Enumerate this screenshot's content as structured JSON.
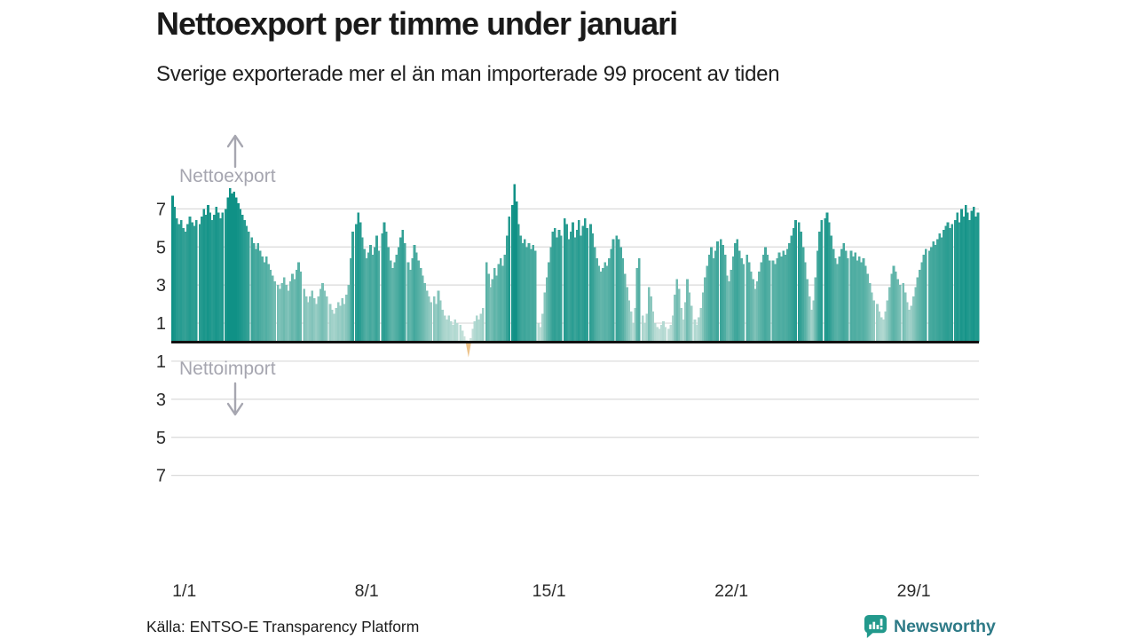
{
  "page": {
    "title": "Nettoexport per timme under januari",
    "subtitle": "Sverige exporterade mer el än man importerade 99 procent av tiden"
  },
  "annotations": {
    "export_label": "Nettoexport",
    "import_label": "Nettoimport"
  },
  "footer": {
    "source": "Källa: ENTSO-E Transparency Platform",
    "brand_name": "Newsworthy"
  },
  "colors": {
    "scale_low": "#d5e8e2",
    "scale_mid": "#62b5aa",
    "scale_high": "#0f9186",
    "negative": "#edc289",
    "gridline": "#dadada",
    "zero_line": "#111111",
    "tick_text": "#2b2b2b",
    "annotation": "#a6a6b0",
    "brand_teal": "#22998c",
    "brand_text": "#2e7a87"
  },
  "chart_data": {
    "type": "area",
    "title": "Nettoexport per timme under januari",
    "x_tick_labels": [
      "1/1",
      "8/1",
      "15/1",
      "22/1",
      "29/1"
    ],
    "x_tick_days": [
      1,
      8,
      15,
      22,
      29
    ],
    "y_tick_values": [
      7,
      5,
      3,
      1,
      -1,
      -3,
      -5,
      -7
    ],
    "ylim": [
      -8.6,
      8.6
    ],
    "grid": true,
    "legend": "none",
    "hours_per_point": 2,
    "days": [
      [
        7.7,
        7.1,
        6.5,
        6.2,
        6.4,
        6.0,
        5.8,
        6.2,
        6.6,
        6.3,
        6.1,
        6.4
      ],
      [
        6.2,
        6.6,
        7.0,
        6.7,
        7.2,
        6.8,
        6.4,
        6.7,
        7.1,
        6.8,
        6.5,
        6.8
      ],
      [
        7.0,
        7.6,
        8.1,
        7.8,
        7.9,
        7.6,
        7.3,
        7.0,
        6.7,
        6.4,
        6.1,
        5.8
      ],
      [
        5.5,
        5.2,
        4.9,
        5.2,
        4.8,
        4.5,
        4.2,
        4.5,
        4.1,
        3.8,
        3.5,
        3.2
      ],
      [
        3.0,
        2.8,
        3.1,
        3.4,
        3.0,
        2.7,
        3.2,
        3.6,
        3.3,
        3.8,
        4.2,
        3.7
      ],
      [
        2.8,
        2.4,
        2.1,
        2.4,
        2.7,
        2.3,
        2.0,
        2.4,
        2.8,
        3.1,
        2.7,
        2.4
      ],
      [
        2.0,
        1.7,
        1.5,
        1.8,
        2.1,
        1.9,
        2.3,
        2.0,
        2.5,
        3.0,
        4.4,
        5.8
      ],
      [
        6.2,
        6.8,
        6.3,
        5.5,
        4.9,
        4.4,
        4.7,
        5.1,
        4.6,
        5.0,
        5.6,
        4.8
      ],
      [
        5.7,
        6.3,
        5.8,
        5.0,
        4.3,
        3.9,
        4.2,
        4.6,
        5.0,
        5.5,
        5.9,
        5.2
      ],
      [
        4.2,
        3.8,
        4.4,
        5.1,
        4.7,
        4.3,
        3.9,
        3.5,
        3.1,
        2.7,
        2.4,
        2.1
      ],
      [
        2.4,
        2.0,
        2.7,
        2.2,
        1.7,
        1.4,
        1.2,
        1.4,
        1.1,
        0.9,
        1.2,
        1.0
      ],
      [
        0.9,
        0.6,
        0.3,
        0.1,
        -0.8,
        0.2,
        0.7,
        1.1,
        1.4,
        1.2,
        1.5,
        1.8
      ],
      [
        4.2,
        3.6,
        2.9,
        3.3,
        3.9,
        3.5,
        4.1,
        4.4,
        4.0,
        4.6,
        5.6,
        6.6
      ],
      [
        7.2,
        8.3,
        7.4,
        6.2,
        5.6,
        5.2,
        5.4,
        5.0,
        5.2,
        4.9,
        5.1,
        4.8
      ],
      [
        1.0,
        0.8,
        1.5,
        2.6,
        3.4,
        4.2,
        5.0,
        5.8,
        6.0,
        5.5,
        5.9,
        5.6
      ],
      [
        6.5,
        6.2,
        5.4,
        5.8,
        6.3,
        5.5,
        5.9,
        6.4,
        5.6,
        6.1,
        6.5,
        6.0
      ],
      [
        6.2,
        5.7,
        5.0,
        4.4,
        4.0,
        3.7,
        3.9,
        4.2,
        4.0,
        4.4,
        4.9,
        5.4
      ],
      [
        5.6,
        5.4,
        5.0,
        4.4,
        3.6,
        2.9,
        2.2,
        1.6,
        1.0,
        1.8,
        3.9,
        4.4
      ],
      [
        1.4,
        1.0,
        1.5,
        2.9,
        2.4,
        1.6,
        1.0,
        0.8,
        0.7,
        0.9,
        1.1,
        0.8
      ],
      [
        0.7,
        0.9,
        1.4,
        2.5,
        3.3,
        2.8,
        1.8,
        1.2,
        2.1,
        3.3,
        2.6,
        1.9
      ],
      [
        1.2,
        0.9,
        1.3,
        1.8,
        2.6,
        3.4,
        4.0,
        4.6,
        5.0,
        4.4,
        4.8,
        5.3
      ],
      [
        5.4,
        5.1,
        4.6,
        3.5,
        3.2,
        3.8,
        4.5,
        5.2,
        5.4,
        4.8,
        4.4,
        4.1
      ],
      [
        4.6,
        4.2,
        3.7,
        3.3,
        2.8,
        3.2,
        3.7,
        4.2,
        4.6,
        5.0,
        4.6,
        4.3
      ],
      [
        4.3,
        4.1,
        4.4,
        4.7,
        4.5,
        4.8,
        4.6,
        4.9,
        5.2,
        5.6,
        6.0,
        6.4
      ],
      [
        6.3,
        5.8,
        5.0,
        4.2,
        3.3,
        2.4,
        1.7,
        2.2,
        3.4,
        4.8,
        5.8,
        6.4
      ],
      [
        6.5,
        6.8,
        6.3,
        5.6,
        4.9,
        4.4,
        4.1,
        4.5,
        4.9,
        5.2,
        4.8,
        4.4
      ],
      [
        4.8,
        4.5,
        4.7,
        4.3,
        4.5,
        4.2,
        4.4,
        4.0,
        3.6,
        3.1,
        2.6,
        2.2
      ],
      [
        2.0,
        1.6,
        1.3,
        1.2,
        1.6,
        2.2,
        2.9,
        3.6,
        4.0,
        3.7,
        3.3,
        3.0
      ],
      [
        3.1,
        2.6,
        2.1,
        1.7,
        1.9,
        2.4,
        2.9,
        3.4,
        3.8,
        4.2,
        4.6,
        4.9
      ],
      [
        4.8,
        5.0,
        5.3,
        5.1,
        5.4,
        5.7,
        5.5,
        5.9,
        6.1,
        6.3,
        6.0,
        6.2
      ],
      [
        6.4,
        6.8,
        6.3,
        7.0,
        6.6,
        7.2,
        6.8,
        6.4,
        6.9,
        7.1,
        6.6,
        6.8
      ]
    ]
  }
}
